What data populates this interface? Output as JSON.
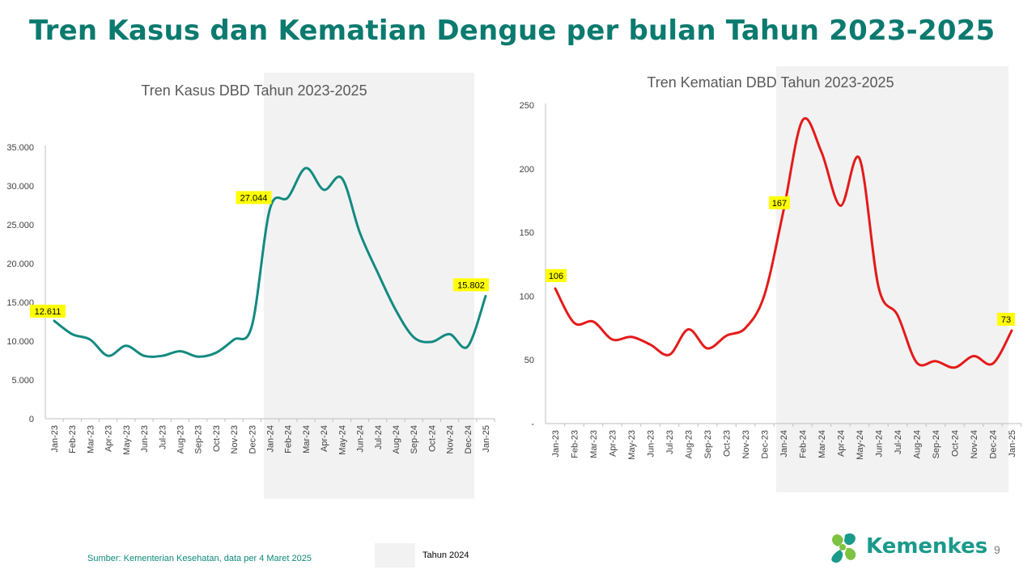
{
  "slide": {
    "title": "Tren Kasus dan Kematian Dengue per bulan Tahun 2023-2025",
    "source": "Sumber: Kementerian Kesehatan, data per 4 Maret 2025",
    "legend_label": "Tahun 2024",
    "page_number": "9",
    "logo_text": "Kemenkes"
  },
  "colors": {
    "title": "#0b7a6f",
    "cases_line": "#138a80",
    "deaths_line": "#e41a1a",
    "highlight_band": "#f2f2f2",
    "label_bg": "#ffff00",
    "logo_green": "#7dc242",
    "logo_teal": "#1a9a8a"
  },
  "chart_data": [
    {
      "type": "line",
      "title": "Tren Kasus DBD Tahun 2023-2025",
      "categories": [
        "Jan-23",
        "Feb-23",
        "Mar-23",
        "Apr-23",
        "May-23",
        "Jun-23",
        "Jul-23",
        "Aug-23",
        "Sep-23",
        "Oct-23",
        "Nov-23",
        "Dec-23",
        "Jan-24",
        "Feb-24",
        "Mar-24",
        "Apr-24",
        "May-24",
        "Jun-24",
        "Jul-24",
        "Aug-24",
        "Sep-24",
        "Oct-24",
        "Nov-24",
        "Dec-24",
        "Jan-25"
      ],
      "series": [
        {
          "values": [
            12611,
            10900,
            10200,
            8100,
            9400,
            8100,
            8100,
            8700,
            8000,
            8500,
            10200,
            12000,
            27044,
            28500,
            32300,
            29500,
            31000,
            24000,
            18800,
            14000,
            10500,
            9900,
            10900,
            9300,
            15802
          ]
        }
      ],
      "ylim": [
        0,
        35000
      ],
      "yticks": [
        0,
        5000,
        10000,
        15000,
        20000,
        25000,
        30000,
        35000
      ],
      "ytick_labels": [
        "0",
        "5.000",
        "10.000",
        "15.000",
        "20.000",
        "25.000",
        "30.000",
        "35.000"
      ],
      "highlight": {
        "from": "Jan-24",
        "to": "Dec-24",
        "label": "Tahun 2024"
      },
      "data_labels": [
        {
          "category": "Jan-23",
          "text": "12.611"
        },
        {
          "category": "Jan-24",
          "text": "27.044"
        },
        {
          "category": "Jan-25",
          "text": "15.802"
        }
      ],
      "grid": false
    },
    {
      "type": "line",
      "title": "Tren Kematian DBD Tahun 2023-2025",
      "categories": [
        "Jan-23",
        "Feb-23",
        "Mar-23",
        "Apr-23",
        "May-23",
        "Jun-23",
        "Jul-23",
        "Aug-23",
        "Sep-23",
        "Oct-23",
        "Nov-23",
        "Dec-23",
        "Jan-24",
        "Feb-24",
        "Mar-24",
        "Apr-24",
        "May-24",
        "Jun-24",
        "Jul-24",
        "Aug-24",
        "Sep-24",
        "Oct-24",
        "Nov-24",
        "Dec-24",
        "Jan-25"
      ],
      "series": [
        {
          "values": [
            106,
            79,
            80,
            66,
            68,
            62,
            54,
            74,
            59,
            69,
            75,
            101,
            167,
            238,
            213,
            171,
            208,
            107,
            85,
            48,
            49,
            44,
            53,
            47,
            73
          ]
        }
      ],
      "ylim": [
        0,
        250
      ],
      "yticks": [
        0,
        50,
        100,
        150,
        200,
        250
      ],
      "ytick_labels": [
        "-",
        "50",
        "100",
        "150",
        "200",
        "250"
      ],
      "highlight": {
        "from": "Jan-24",
        "to": "Dec-24",
        "label": "Tahun 2024"
      },
      "data_labels": [
        {
          "category": "Jan-23",
          "text": "106"
        },
        {
          "category": "Jan-24",
          "text": "167"
        },
        {
          "category": "Jan-25",
          "text": "73"
        }
      ],
      "grid": false
    }
  ]
}
